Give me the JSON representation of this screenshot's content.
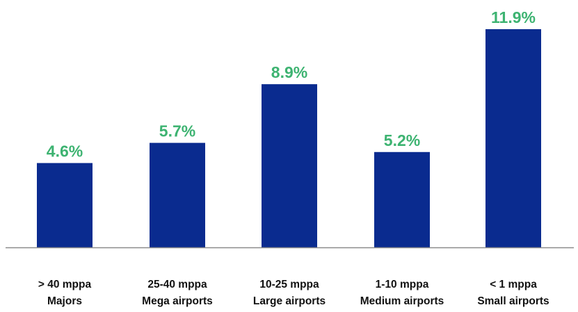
{
  "chart_data": {
    "type": "bar",
    "categories": [
      [
        "> 40 mppa",
        "Majors"
      ],
      [
        "25-40 mppa",
        "Mega airports"
      ],
      [
        "10-25 mppa",
        "Large airports"
      ],
      [
        "1-10 mppa",
        "Medium airports"
      ],
      [
        "< 1 mppa",
        "Small airports"
      ]
    ],
    "values": [
      4.6,
      5.7,
      8.9,
      5.2,
      11.9
    ],
    "data_labels": [
      "4.6%",
      "5.7%",
      "8.9%",
      "5.2%",
      "11.9%"
    ],
    "title": "",
    "xlabel": "",
    "ylabel": "",
    "ylim": [
      0,
      11.9
    ],
    "grid": false,
    "legend": "none",
    "colors": {
      "bar": "#0a2b8f",
      "value_label": "#3db371",
      "axis": "#8c8c8c",
      "category_label": "#111111"
    }
  }
}
